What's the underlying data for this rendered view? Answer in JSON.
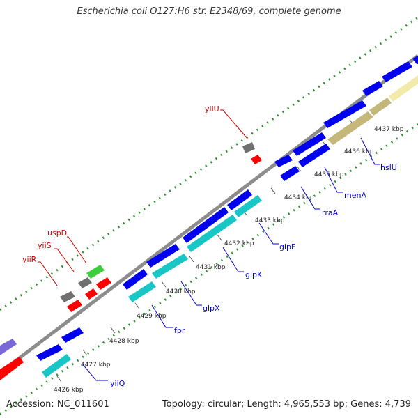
{
  "title": "Escherichia coli O127:H6 str. E2348/69, complete genome",
  "footer": {
    "accession": "Accession: NC_011601",
    "summary": "Topology: circular; Length: 4,965,553 bp; Genes: 4,739"
  },
  "colors": {
    "backbone": "#8c8c8c",
    "ticks": "#2f8f2f",
    "cds": "#0000ee",
    "cyan_gene": "#19c6c6",
    "red_gene": "#ff0000",
    "gray_gene": "#707070",
    "green_gene": "#3ccd3c",
    "khaki_gene": "#c4b77a",
    "pale_gene": "#f2eaa8",
    "purple_gene": "#7a68d8",
    "label_blue": "#0000cc",
    "label_red": "#cc0000"
  },
  "kbp_labels": [
    "4426 kbp",
    "4427 kbp",
    "4428 kbp",
    "4429 kbp",
    "4430 kbp",
    "4431 kbp",
    "4432 kbp",
    "4433 kbp",
    "4434 kbp",
    "4435 kbp",
    "4436 kbp",
    "4437 kbp"
  ],
  "gene_labels": {
    "yiiQ": "yiiQ",
    "fpr": "fpr",
    "glpX": "glpX",
    "glpK": "glpK",
    "glpF": "glpF",
    "rraA": "rraA",
    "menA": "menA",
    "hslU": "hslU",
    "yiiU": "yiiU",
    "uspD": "uspD",
    "yiiS": "yiiS",
    "yiiR": "yiiR"
  }
}
